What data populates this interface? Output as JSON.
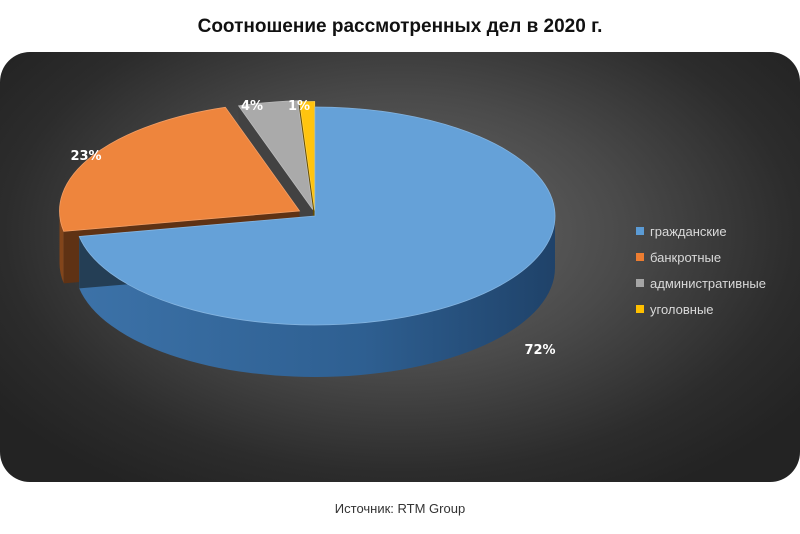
{
  "title": "Соотношение рассмотренных дел в 2020 г.",
  "source": "Источник: RTM Group",
  "chart_data": {
    "type": "pie",
    "style": "3d-exploded",
    "legend_position": "right",
    "categories": [
      "гражданские",
      "банкротные",
      "административные",
      "уголовные"
    ],
    "values": [
      72,
      23,
      4,
      1
    ],
    "labels": [
      "72%",
      "23%",
      "4%",
      "1%"
    ],
    "colors": [
      "#5b9bd5",
      "#ed7d31",
      "#a5a5a5",
      "#ffc000"
    ]
  }
}
